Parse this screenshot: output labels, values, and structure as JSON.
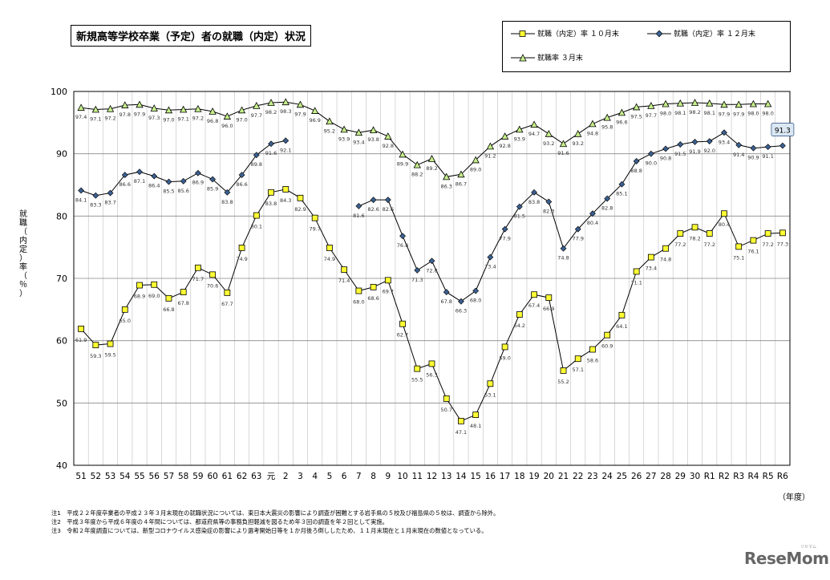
{
  "chart_data": {
    "type": "line",
    "title": "新規高等学校卒業（予定）者の就職（内定）状況",
    "ylabel": "就職（内定）率（％）",
    "xlabel": "（年度）",
    "ylim": [
      40,
      100
    ],
    "yticks": [
      40,
      50,
      60,
      70,
      80,
      90,
      100
    ],
    "grid": true,
    "legend_position": "top-right",
    "categories": [
      "51",
      "52",
      "53",
      "54",
      "55",
      "56",
      "57",
      "58",
      "59",
      "60",
      "61",
      "62",
      "63",
      "元",
      "2",
      "3",
      "4",
      "5",
      "6",
      "7",
      "8",
      "9",
      "10",
      "11",
      "12",
      "13",
      "14",
      "15",
      "16",
      "17",
      "18",
      "19",
      "20",
      "21",
      "22",
      "23",
      "24",
      "25",
      "26",
      "27",
      "28",
      "29",
      "30",
      "R1",
      "R2",
      "R3",
      "R4",
      "R5",
      "R6"
    ],
    "series": [
      {
        "name": "就職（内定）率 １０月末",
        "marker": "square",
        "marker_color": "#ffff33",
        "values": [
          61.9,
          59.3,
          59.5,
          65.0,
          68.9,
          69.0,
          66.8,
          67.8,
          71.7,
          70.6,
          67.7,
          74.9,
          80.1,
          83.8,
          84.3,
          82.9,
          79.7,
          74.9,
          71.4,
          68.0,
          68.6,
          69.7,
          62.7,
          55.5,
          56.3,
          50.7,
          47.1,
          48.1,
          53.1,
          59.0,
          64.2,
          67.4,
          66.9,
          55.2,
          57.1,
          58.6,
          60.9,
          64.1,
          71.1,
          73.4,
          74.8,
          77.2,
          78.2,
          77.2,
          80.4,
          75.1,
          76.1,
          77.2,
          77.3
        ],
        "labels": [
          "61.9",
          "59.3",
          "59.5",
          "65.0",
          "68.9",
          "69.0",
          "66.8",
          "67.8",
          "71.7",
          "70.6",
          "67.7",
          "74.9",
          "80.1",
          "83.8",
          "84.3",
          "82.9",
          "79.7",
          "74.9",
          "71.4",
          "68.0",
          "68.6",
          "69.7",
          "62.7",
          "55.5",
          "56.3",
          "50.7",
          "47.1",
          "48.1",
          "53.1",
          "59.0",
          "64.2",
          "67.4",
          "66.9",
          "55.2",
          "57.1",
          "58.6",
          "60.9",
          "64.1",
          "71.1",
          "73.4",
          "74.8",
          "77.2",
          "78.2",
          "77.2",
          "80.4",
          "75.1",
          "76.1",
          "77.2",
          "77.3"
        ]
      },
      {
        "name": "就職（内定）率 １２月末",
        "marker": "diamond",
        "marker_color": "#3b5f8f",
        "values": [
          84.1,
          83.3,
          83.7,
          86.6,
          87.1,
          86.4,
          85.5,
          85.6,
          86.9,
          85.9,
          83.8,
          86.6,
          89.8,
          91.6,
          92.1,
          null,
          null,
          null,
          null,
          81.6,
          82.6,
          82.6,
          76.8,
          71.3,
          72.8,
          67.8,
          66.3,
          68.0,
          73.4,
          77.9,
          81.5,
          83.8,
          82.3,
          74.8,
          77.9,
          80.4,
          82.8,
          85.1,
          88.8,
          90.0,
          90.8,
          91.5,
          91.9,
          92.0,
          93.4,
          91.4,
          90.9,
          91.1,
          91.3
        ],
        "labels": [
          "84.1",
          "83.3",
          "83.7",
          "86.6",
          "87.1",
          "86.4",
          "85.5",
          "85.6",
          "86.9",
          "85.9",
          "83.8",
          "86.6",
          "89.8",
          "91.6",
          "92.1",
          "",
          "",
          "",
          "",
          "81.6",
          "82.6",
          "82.6",
          "76.8",
          "71.3",
          "72.8",
          "67.8",
          "66.3",
          "68.0",
          "73.4",
          "77.9",
          "81.5",
          "83.8",
          "82.3",
          "74.8",
          "77.9",
          "80.4",
          "82.8",
          "85.1",
          "88.8",
          "90.0",
          "90.8",
          "91.5",
          "91.9",
          "92.0",
          "93.4",
          "91.4",
          "90.9",
          "91.1",
          "91.3"
        ]
      },
      {
        "name": "就職率 ３月末",
        "marker": "triangle",
        "marker_color": "#c6f08a",
        "values": [
          97.4,
          97.1,
          97.2,
          97.8,
          97.9,
          97.3,
          97.0,
          97.1,
          97.2,
          96.8,
          96.0,
          97.0,
          97.7,
          98.2,
          98.3,
          97.9,
          96.9,
          95.2,
          93.9,
          93.4,
          93.8,
          92.8,
          89.9,
          88.2,
          89.2,
          86.3,
          86.7,
          89.0,
          91.2,
          92.8,
          93.9,
          94.7,
          93.2,
          91.6,
          93.2,
          94.8,
          95.8,
          96.6,
          97.5,
          97.7,
          98.0,
          98.1,
          98.2,
          98.1,
          97.9,
          97.9,
          98.0,
          98.0,
          null
        ],
        "labels": [
          "97.4",
          "97.1",
          "97.2",
          "97.8",
          "97.9",
          "97.3",
          "97.0",
          "97.1",
          "97.2",
          "96.8",
          "96.0",
          "97.0",
          "97.7",
          "98.2",
          "98.3",
          "97.9",
          "96.9",
          "95.2",
          "93.9",
          "93.4",
          "93.8",
          "92.8",
          "89.9",
          "88.2",
          "89.2",
          "86.3",
          "86.7",
          "89.0",
          "91.2",
          "92.8",
          "93.9",
          "94.7",
          "93.2",
          "91.6",
          "93.2",
          "94.8",
          "95.8",
          "96.6",
          "97.5",
          "97.7",
          "98.0",
          "98.1",
          "98.2",
          "98.1",
          "97.9",
          "97.9",
          "98.0",
          "98.0",
          ""
        ]
      }
    ],
    "annotations": {
      "highlight_label": "91.3",
      "highlight_series": 1,
      "highlight_index": 48
    }
  },
  "y_axis_title_chars": [
    "就",
    "職",
    "（",
    "内",
    "定",
    "）",
    "率",
    "（",
    "％",
    "）"
  ],
  "notes": [
    "注1　平成２２年度卒業者の平成２３年３月末現在の就職状況については、東日本大震災の影響により調査が困難とする岩手県の５校及び福島県の５校は、調査から除外。",
    "注2　平成３年度から平成６年度の４年間については、都道府県等の事務負担軽減を図るため年３回の調査を年２回として実施。",
    "注3　令和２年度調査については、新型コロナウイルス感染症の影響により選考開始日等を１か月後ろ倒ししたため、１１月末現在と１月末現在の数値となっている。"
  ],
  "watermark": "ReseMom",
  "watermark_small": "リセマム",
  "colors": {
    "line": "#000000",
    "grid": "#bfbfbf",
    "label": "#333333",
    "highlight_fill": "#dbe7f3",
    "highlight_border": "#3b5f8f"
  }
}
